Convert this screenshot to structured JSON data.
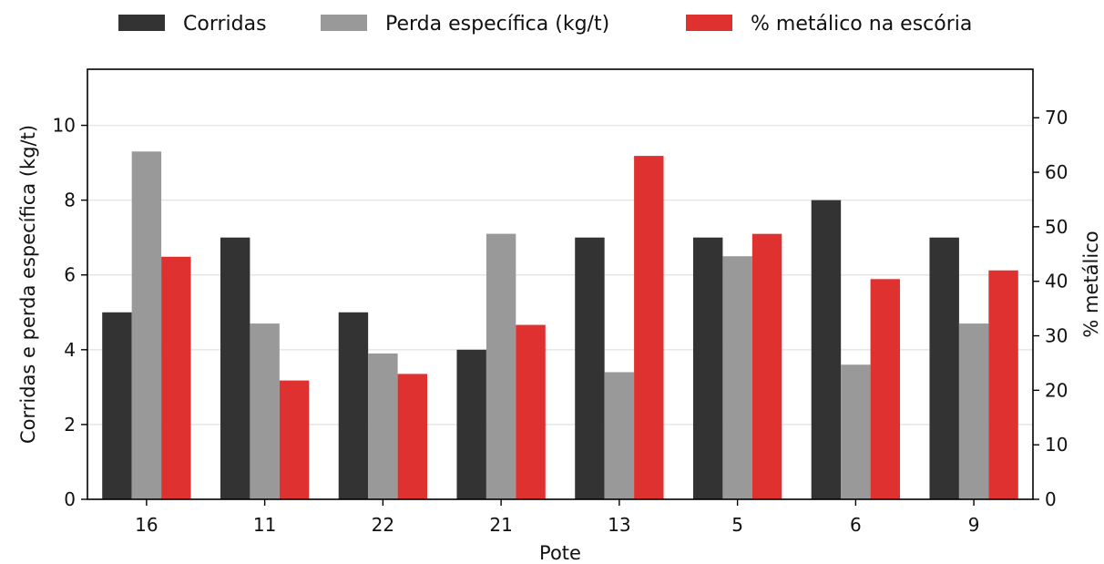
{
  "chart_data": {
    "type": "bar",
    "categories": [
      "16",
      "11",
      "22",
      "21",
      "13",
      "5",
      "6",
      "9"
    ],
    "series": [
      {
        "name": "Corridas",
        "axis": "left",
        "color": "#333333",
        "values": [
          5,
          7,
          5,
          4,
          7,
          7,
          8,
          7
        ]
      },
      {
        "name": "Perda específica (kg/t)",
        "axis": "left",
        "color": "#999999",
        "values": [
          9.3,
          4.7,
          3.9,
          7.1,
          3.4,
          6.5,
          3.6,
          4.7
        ]
      },
      {
        "name": "% metálico na escória",
        "axis": "right",
        "color": "#e03131",
        "values": [
          44.5,
          21.8,
          23.0,
          32.0,
          63.0,
          48.7,
          40.4,
          42.0
        ]
      }
    ],
    "xlabel": "Pote",
    "ylabel": "Corridas e perda específica (kg/t)",
    "y2label": "% metálico",
    "ylim": [
      0,
      11.5
    ],
    "y2lim": [
      0,
      78.9
    ],
    "yticks": [
      0,
      2,
      4,
      6,
      8,
      10
    ],
    "y2ticks": [
      0,
      10,
      20,
      30,
      40,
      50,
      60,
      70
    ],
    "grid": "horizontal",
    "legend_position": "top-center"
  }
}
